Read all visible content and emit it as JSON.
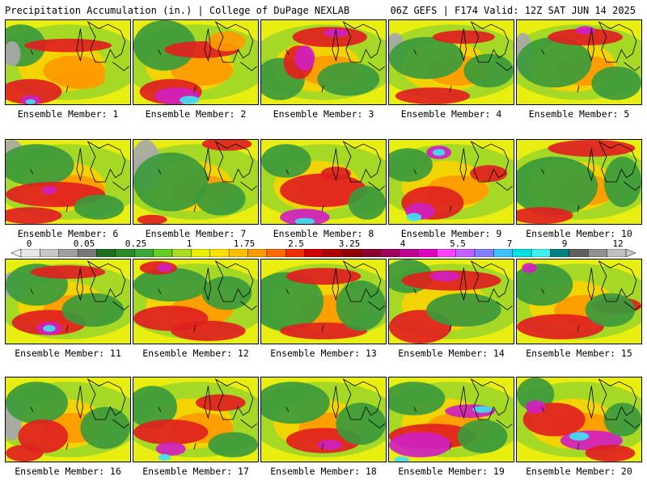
{
  "header": {
    "title": "Precipitation Accumulation (in.) | College of DuPage NEXLAB",
    "run": "06Z GEFS | F174 Valid: 12Z SAT JUN 14 2025"
  },
  "colorbar": {
    "tick_labels": [
      "0",
      "0.05",
      "0.25",
      "1",
      "1.75",
      "2.5",
      "3.25",
      "4",
      "5.5",
      "7",
      "9",
      "12"
    ],
    "colors": [
      "#e8e8e8",
      "#c8c8c8",
      "#a0a0a0",
      "#787878",
      "#1e6e1e",
      "#2a8a2a",
      "#3aa83a",
      "#66cc22",
      "#a8dd22",
      "#e8f000",
      "#ffe000",
      "#ffc000",
      "#ff9a00",
      "#ff6a00",
      "#f03000",
      "#d00000",
      "#b00000",
      "#900000",
      "#8a0030",
      "#a00060",
      "#c00090",
      "#e000c0",
      "#ff40ff",
      "#c060ff",
      "#8080ff",
      "#40c0ff",
      "#00e0e0",
      "#40f0f0",
      "#008080",
      "#606060",
      "#909090",
      "#c0c0c0"
    ]
  },
  "panels": [
    {
      "label": "Ensemble Member: 1"
    },
    {
      "label": "Ensemble Member: 2"
    },
    {
      "label": "Ensemble Member: 3"
    },
    {
      "label": "Ensemble Member: 4"
    },
    {
      "label": "Ensemble Member: 5"
    },
    {
      "label": "Ensemble Member: 6"
    },
    {
      "label": "Ensemble Member: 7"
    },
    {
      "label": "Ensemble Member: 8"
    },
    {
      "label": "Ensemble Member: 9"
    },
    {
      "label": "Ensemble Member: 10"
    },
    {
      "label": "Ensemble Member: 11"
    },
    {
      "label": "Ensemble Member: 12"
    },
    {
      "label": "Ensemble Member: 13"
    },
    {
      "label": "Ensemble Member: 14"
    },
    {
      "label": "Ensemble Member: 15"
    },
    {
      "label": "Ensemble Member: 16"
    },
    {
      "label": "Ensemble Member: 17"
    },
    {
      "label": "Ensemble Member: 18"
    },
    {
      "label": "Ensemble Member: 19"
    },
    {
      "label": "Ensemble Member: 20"
    }
  ]
}
